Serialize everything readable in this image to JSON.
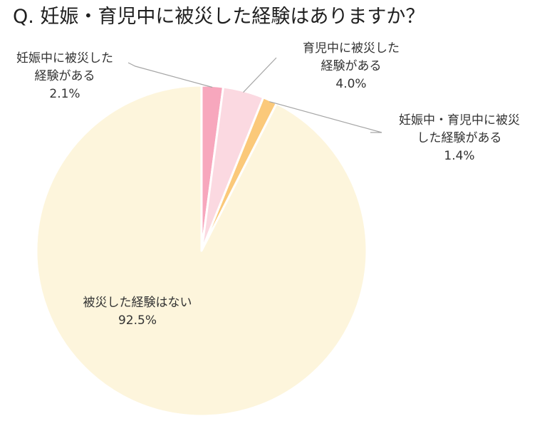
{
  "chart_data": {
    "type": "pie",
    "title": "Q.  妊娠・育児中に被災した経験はありますか？",
    "slices": [
      {
        "label_lines": [
          "妊娠中に被災した",
          "経験がある"
        ],
        "value_text": "2.1%",
        "value": 2.1,
        "color": "#f7a7bd"
      },
      {
        "label_lines": [
          "育児中に被災した",
          "経験がある"
        ],
        "value_text": "4.0%",
        "value": 4.0,
        "color": "#fbd9e1"
      },
      {
        "label_lines": [
          "妊娠中・育児中に被災",
          "した経験がある"
        ],
        "value_text": "1.4%",
        "value": 1.4,
        "color": "#fbc97a"
      },
      {
        "label_lines": [
          "被災した経験はない"
        ],
        "value_text": "92.5%",
        "value": 92.5,
        "color": "#fdf5dc"
      }
    ]
  }
}
